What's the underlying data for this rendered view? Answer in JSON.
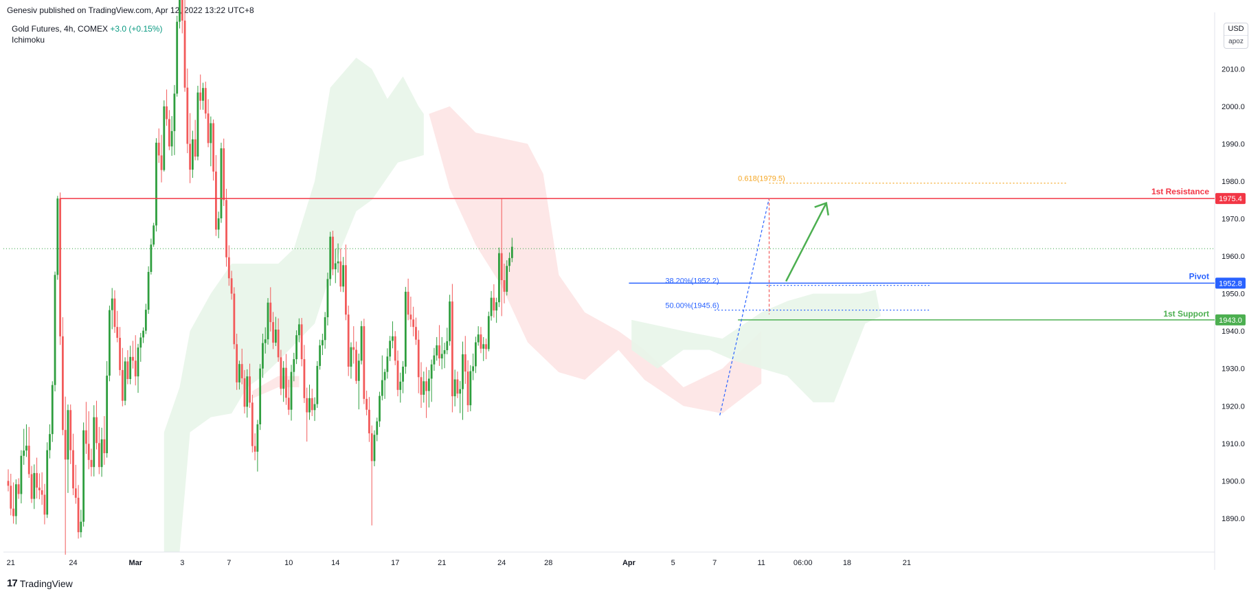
{
  "header": {
    "published": "Genesiv published on TradingView.com, Apr 12, 2022 13:22 UTC+8"
  },
  "legend": {
    "symbol": "Gold Futures, 4h, COMEX",
    "change": "+3.0 (+0.15%)",
    "indicator": "Ichimoku"
  },
  "price_scale": {
    "currency": "USD",
    "badge": "apoz"
  },
  "footer": {
    "logo_mark": "17",
    "brand": "TradingView"
  },
  "colors": {
    "up": "#2e9e3e",
    "down": "#f25a5a",
    "resistance": "#f23645",
    "pivot": "#2962ff",
    "support": "#4caf50",
    "fib": "#f5a623",
    "cloud_bull": "#e8f5e9",
    "cloud_bear": "#fde4e4"
  },
  "chart_data": {
    "type": "candlestick",
    "title": "",
    "ylim": [
      1881,
      2024
    ],
    "y_ticks": [
      1890.0,
      1900.0,
      1910.0,
      1920.0,
      1930.0,
      1940.0,
      1950.0,
      1960.0,
      1970.0,
      1980.0,
      1990.0,
      2000.0,
      2010.0
    ],
    "y_tick_labels": [
      "1890.0",
      "1900.0",
      "1910.0",
      "1920.0",
      "1930.0",
      "1940.0",
      "1950.0",
      "1960.0",
      "1970.0",
      "1980.0",
      "1990.0",
      "2000.0",
      "2010.0"
    ],
    "x_ticks": [
      {
        "label": "21",
        "bar": 1,
        "bold": false
      },
      {
        "label": "24",
        "bar": 25,
        "bold": false
      },
      {
        "label": "Mar",
        "bar": 49,
        "bold": true
      },
      {
        "label": "3",
        "bar": 67,
        "bold": false
      },
      {
        "label": "7",
        "bar": 85,
        "bold": false
      },
      {
        "label": "10",
        "bar": 108,
        "bold": false
      },
      {
        "label": "14",
        "bar": 126,
        "bold": false
      },
      {
        "label": "17",
        "bar": 149,
        "bold": false
      },
      {
        "label": "21",
        "bar": 167,
        "bold": false
      },
      {
        "label": "24",
        "bar": 190,
        "bold": false
      },
      {
        "label": "28",
        "bar": 208,
        "bold": false
      },
      {
        "label": "Apr",
        "bar": 239,
        "bold": true
      },
      {
        "label": "5",
        "bar": 256,
        "bold": false
      },
      {
        "label": "7",
        "bar": 272,
        "bold": false
      },
      {
        "label": "11",
        "bar": 290,
        "bold": false
      },
      {
        "label": "06:00",
        "bar": 306,
        "bold": false
      },
      {
        "label": "18",
        "bar": 323,
        "bold": false
      },
      {
        "label": "21",
        "bar": 346,
        "bold": false
      }
    ],
    "levels": [
      {
        "name": "1st Resistance",
        "value": 1975.4,
        "label": "1975.4"
      },
      {
        "name": "Pivot",
        "value": 1952.8,
        "label": "1952.8"
      },
      {
        "name": "1st Support",
        "value": 1943.0,
        "label": "1943.0"
      }
    ],
    "fib_levels": [
      {
        "label": "0.618(1979.5)",
        "value": 1979.5
      },
      {
        "label": "38.20%(1952.2)",
        "value": 1952.2
      },
      {
        "label": "50.00%(1945.6)",
        "value": 1945.6
      }
    ],
    "last_price": 1962.0,
    "candles": [
      [
        1900.0,
        1903.1,
        1897.2,
        1898.7
      ],
      [
        1898.7,
        1901.9,
        1890.8,
        1892.6
      ],
      [
        1892.6,
        1899.6,
        1888.6,
        1890.6
      ],
      [
        1890.6,
        1900.4,
        1888.4,
        1899.1
      ],
      [
        1899.1,
        1900.7,
        1895.2,
        1896.5
      ],
      [
        1896.5,
        1908.2,
        1894.0,
        1906.7
      ],
      [
        1906.7,
        1913.9,
        1904.3,
        1908.1
      ],
      [
        1908.1,
        1915.1,
        1906.4,
        1909.4
      ],
      [
        1909.4,
        1914.4,
        1900.8,
        1901.8
      ],
      [
        1901.8,
        1904.0,
        1894.1,
        1895.2
      ],
      [
        1895.2,
        1904.4,
        1892.5,
        1902.1
      ],
      [
        1902.1,
        1906.2,
        1895.3,
        1898.2
      ],
      [
        1898.2,
        1902.0,
        1895.1,
        1897.5
      ],
      [
        1897.5,
        1902.3,
        1893.6,
        1896.3
      ],
      [
        1896.3,
        1899.2,
        1888.4,
        1891.0
      ],
      [
        1891.0,
        1910.3,
        1890.1,
        1908.2
      ],
      [
        1908.2,
        1915.1,
        1906.0,
        1912.5
      ],
      [
        1912.5,
        1926.6,
        1910.4,
        1925.6
      ],
      [
        1925.6,
        1955.9,
        1923.9,
        1955.0
      ],
      [
        1955.0,
        1976.1,
        1953.7,
        1975.4
      ],
      [
        1975.4,
        1977.0,
        1936.3,
        1938.6
      ],
      [
        1938.6,
        1943.7,
        1912.2,
        1913.6
      ],
      [
        1913.6,
        1922.5,
        1880.3,
        1905.7
      ],
      [
        1905.7,
        1920.4,
        1896.8,
        1918.9
      ],
      [
        1918.9,
        1920.4,
        1904.5,
        1908.2
      ],
      [
        1908.2,
        1912.6,
        1896.2,
        1898.0
      ],
      [
        1898.0,
        1904.3,
        1893.9,
        1895.5
      ],
      [
        1895.5,
        1898.9,
        1884.6,
        1886.3
      ],
      [
        1886.3,
        1892.3,
        1884.9,
        1889.1
      ],
      [
        1889.1,
        1915.6,
        1887.8,
        1913.5
      ],
      [
        1913.5,
        1921.1,
        1907.2,
        1909.9
      ],
      [
        1909.9,
        1918.6,
        1903.1,
        1905.6
      ],
      [
        1905.6,
        1908.6,
        1901.2,
        1903.7
      ],
      [
        1903.7,
        1920.2,
        1901.2,
        1917.0
      ],
      [
        1917.0,
        1921.4,
        1908.4,
        1910.1
      ],
      [
        1910.1,
        1914.4,
        1901.8,
        1903.7
      ],
      [
        1903.7,
        1914.2,
        1901.1,
        1911.1
      ],
      [
        1911.1,
        1917.3,
        1904.3,
        1907.4
      ],
      [
        1907.4,
        1932.0,
        1906.2,
        1928.1
      ],
      [
        1928.1,
        1946.8,
        1926.6,
        1945.6
      ],
      [
        1945.6,
        1951.5,
        1940.5,
        1948.7
      ],
      [
        1948.7,
        1950.9,
        1939.5,
        1941.1
      ],
      [
        1941.1,
        1945.4,
        1937.0,
        1938.2
      ],
      [
        1938.2,
        1941.1,
        1928.1,
        1929.6
      ],
      [
        1929.6,
        1935.5,
        1919.9,
        1921.4
      ],
      [
        1921.4,
        1933.0,
        1920.2,
        1931.9
      ],
      [
        1931.9,
        1934.9,
        1925.8,
        1927.2
      ],
      [
        1927.2,
        1936.1,
        1925.8,
        1933.1
      ],
      [
        1933.1,
        1937.4,
        1930.0,
        1932.1
      ],
      [
        1932.1,
        1938.9,
        1925.5,
        1927.9
      ],
      [
        1927.9,
        1936.6,
        1923.5,
        1935.6
      ],
      [
        1935.6,
        1939.5,
        1931.8,
        1938.3
      ],
      [
        1938.3,
        1941.0,
        1936.8,
        1940.1
      ],
      [
        1940.1,
        1947.3,
        1939.2,
        1945.7
      ],
      [
        1945.7,
        1957.3,
        1944.6,
        1955.8
      ],
      [
        1955.8,
        1964.7,
        1955.1,
        1963.1
      ],
      [
        1963.1,
        1968.9,
        1962.5,
        1968.2
      ],
      [
        1968.2,
        1991.5,
        1966.6,
        1990.3
      ],
      [
        1990.3,
        1994.1,
        1984.9,
        1986.9
      ],
      [
        1986.9,
        1992.4,
        1979.7,
        1983.0
      ],
      [
        1983.0,
        2001.6,
        1982.6,
        2000.0
      ],
      [
        2000.0,
        2004.5,
        1994.8,
        1996.6
      ],
      [
        1996.6,
        1999.0,
        1988.3,
        1989.3
      ],
      [
        1989.3,
        1997.4,
        1986.8,
        1993.4
      ],
      [
        1993.4,
        2005.7,
        1987.0,
        2003.4
      ],
      [
        2003.4,
        2024.2,
        2002.6,
        2022.6
      ],
      [
        2022.6,
        2036.0,
        2020.8,
        2033.7
      ],
      [
        2033.7,
        2037.5,
        2019.5,
        2022.9
      ],
      [
        2022.9,
        2030.2,
        2003.9,
        2005.0
      ],
      [
        2005.0,
        2010.1,
        1987.5,
        1990.0
      ],
      [
        1990.0,
        1998.2,
        1979.5,
        1983.1
      ],
      [
        1983.1,
        1993.5,
        1980.9,
        1991.2
      ],
      [
        1991.2,
        1996.4,
        1985.6,
        1986.6
      ],
      [
        1986.6,
        2005.5,
        1985.6,
        2003.7
      ],
      [
        2003.7,
        2008.5,
        1999.1,
        2001.5
      ],
      [
        2001.5,
        2006.3,
        1999.1,
        2004.9
      ],
      [
        2004.9,
        2006.6,
        1996.7,
        1998.1
      ],
      [
        1998.1,
        2001.9,
        1989.1,
        1990.2
      ],
      [
        1990.2,
        1997.3,
        1984.0,
        1995.5
      ],
      [
        1995.5,
        1996.5,
        1980.2,
        1982.6
      ],
      [
        1982.6,
        1987.0,
        1965.4,
        1967.1
      ],
      [
        1967.1,
        1971.9,
        1964.8,
        1970.1
      ],
      [
        1970.1,
        1990.3,
        1968.9,
        1988.8
      ],
      [
        1988.8,
        1991.4,
        1973.4,
        1975.0
      ],
      [
        1975.0,
        1978.0,
        1957.2,
        1959.7
      ],
      [
        1959.7,
        1962.9,
        1952.1,
        1954.1
      ],
      [
        1954.1,
        1956.1,
        1948.4,
        1950.0
      ],
      [
        1950.0,
        1951.7,
        1935.2,
        1936.5
      ],
      [
        1936.5,
        1939.3,
        1924.3,
        1926.3
      ],
      [
        1926.3,
        1932.1,
        1924.4,
        1931.2
      ],
      [
        1931.2,
        1935.3,
        1925.8,
        1927.4
      ],
      [
        1927.4,
        1929.6,
        1918.0,
        1919.8
      ],
      [
        1919.8,
        1929.8,
        1916.9,
        1927.9
      ],
      [
        1927.9,
        1931.3,
        1919.5,
        1920.9
      ],
      [
        1920.9,
        1923.0,
        1907.6,
        1909.3
      ],
      [
        1909.3,
        1912.7,
        1905.5,
        1907.8
      ],
      [
        1907.8,
        1916.3,
        1902.5,
        1915.1
      ],
      [
        1915.1,
        1931.2,
        1913.6,
        1930.0
      ],
      [
        1930.0,
        1939.3,
        1927.5,
        1936.8
      ],
      [
        1936.8,
        1941.0,
        1934.0,
        1937.8
      ],
      [
        1937.8,
        1948.8,
        1936.4,
        1947.6
      ],
      [
        1947.6,
        1951.7,
        1939.9,
        1942.4
      ],
      [
        1942.4,
        1945.1,
        1935.2,
        1936.9
      ],
      [
        1936.9,
        1943.8,
        1936.0,
        1940.4
      ],
      [
        1940.4,
        1943.4,
        1931.8,
        1933.0
      ],
      [
        1933.0,
        1935.0,
        1922.9,
        1924.6
      ],
      [
        1924.6,
        1932.0,
        1921.1,
        1930.2
      ],
      [
        1930.2,
        1933.9,
        1920.3,
        1922.2
      ],
      [
        1922.2,
        1927.0,
        1917.6,
        1919.0
      ],
      [
        1919.0,
        1931.0,
        1916.1,
        1929.1
      ],
      [
        1929.1,
        1934.2,
        1926.6,
        1932.5
      ],
      [
        1932.5,
        1940.2,
        1931.2,
        1938.9
      ],
      [
        1938.9,
        1943.4,
        1937.0,
        1941.8
      ],
      [
        1941.8,
        1943.5,
        1930.6,
        1932.5
      ],
      [
        1932.5,
        1936.3,
        1920.8,
        1922.1
      ],
      [
        1922.1,
        1924.9,
        1910.5,
        1918.3
      ],
      [
        1918.3,
        1925.7,
        1916.3,
        1922.1
      ],
      [
        1922.1,
        1924.6,
        1917.3,
        1918.9
      ],
      [
        1918.9,
        1922.3,
        1916.0,
        1920.5
      ],
      [
        1920.5,
        1932.0,
        1919.5,
        1930.7
      ],
      [
        1930.7,
        1937.7,
        1929.7,
        1936.2
      ],
      [
        1936.2,
        1939.3,
        1933.6,
        1937.6
      ],
      [
        1937.6,
        1945.1,
        1935.3,
        1943.7
      ],
      [
        1943.7,
        1955.6,
        1941.5,
        1953.9
      ],
      [
        1953.9,
        1966.5,
        1952.1,
        1965.2
      ],
      [
        1965.2,
        1966.8,
        1954.9,
        1956.5
      ],
      [
        1956.5,
        1962.0,
        1952.8,
        1958.1
      ],
      [
        1958.1,
        1963.4,
        1955.6,
        1958.6
      ],
      [
        1958.6,
        1962.1,
        1950.5,
        1951.9
      ],
      [
        1951.9,
        1959.8,
        1950.4,
        1957.6
      ],
      [
        1957.6,
        1963.1,
        1942.9,
        1944.4
      ],
      [
        1944.4,
        1946.8,
        1928.0,
        1930.5
      ],
      [
        1930.5,
        1937.0,
        1927.3,
        1935.7
      ],
      [
        1935.7,
        1941.3,
        1931.3,
        1935.0
      ],
      [
        1935.0,
        1937.2,
        1925.9,
        1926.7
      ],
      [
        1926.7,
        1934.0,
        1919.1,
        1932.1
      ],
      [
        1932.1,
        1942.7,
        1931.1,
        1941.3
      ],
      [
        1941.3,
        1943.3,
        1920.5,
        1921.9
      ],
      [
        1921.9,
        1924.1,
        1917.5,
        1919.0
      ],
      [
        1919.0,
        1922.4,
        1910.4,
        1912.7
      ],
      [
        1912.7,
        1914.8,
        1888.1,
        1905.3
      ],
      [
        1905.3,
        1913.5,
        1903.9,
        1912.3
      ],
      [
        1912.3,
        1916.9,
        1910.6,
        1915.9
      ],
      [
        1915.9,
        1923.8,
        1914.4,
        1922.7
      ],
      [
        1922.7,
        1933.5,
        1921.5,
        1926.9
      ],
      [
        1926.9,
        1929.9,
        1921.9,
        1929.1
      ],
      [
        1929.1,
        1935.4,
        1927.3,
        1933.2
      ],
      [
        1933.2,
        1938.7,
        1932.0,
        1937.4
      ],
      [
        1937.4,
        1942.6,
        1935.4,
        1938.6
      ],
      [
        1938.6,
        1940.0,
        1930.9,
        1932.1
      ],
      [
        1932.1,
        1934.8,
        1922.6,
        1924.3
      ],
      [
        1924.3,
        1928.9,
        1920.9,
        1926.5
      ],
      [
        1926.5,
        1932.0,
        1923.4,
        1930.5
      ],
      [
        1930.5,
        1951.8,
        1928.6,
        1950.5
      ],
      [
        1950.5,
        1954.0,
        1942.9,
        1944.4
      ],
      [
        1944.4,
        1949.2,
        1941.1,
        1943.1
      ],
      [
        1943.1,
        1946.5,
        1938.6,
        1941.1
      ],
      [
        1941.1,
        1943.6,
        1936.3,
        1937.7
      ],
      [
        1937.7,
        1940.2,
        1923.4,
        1927.7
      ],
      [
        1927.7,
        1931.7,
        1919.5,
        1923.0
      ],
      [
        1923.0,
        1929.2,
        1920.9,
        1926.6
      ],
      [
        1926.6,
        1930.4,
        1916.8,
        1924.0
      ],
      [
        1924.0,
        1929.6,
        1919.6,
        1927.3
      ],
      [
        1927.3,
        1932.4,
        1921.1,
        1931.1
      ],
      [
        1931.1,
        1935.5,
        1929.4,
        1933.5
      ],
      [
        1933.5,
        1938.4,
        1932.1,
        1936.2
      ],
      [
        1936.2,
        1941.6,
        1930.7,
        1932.7
      ],
      [
        1932.7,
        1938.4,
        1929.8,
        1933.9
      ],
      [
        1933.9,
        1936.9,
        1930.1,
        1934.9
      ],
      [
        1934.9,
        1940.9,
        1933.8,
        1937.3
      ],
      [
        1937.3,
        1949.7,
        1936.1,
        1947.9
      ],
      [
        1947.9,
        1952.6,
        1918.3,
        1922.6
      ],
      [
        1922.6,
        1929.7,
        1919.9,
        1927.1
      ],
      [
        1927.1,
        1929.2,
        1922.1,
        1923.3
      ],
      [
        1923.3,
        1926.7,
        1918.1,
        1924.5
      ],
      [
        1924.5,
        1937.2,
        1916.3,
        1933.8
      ],
      [
        1933.8,
        1938.7,
        1925.9,
        1929.2
      ],
      [
        1929.2,
        1932.2,
        1918.4,
        1920.2
      ],
      [
        1920.2,
        1930.9,
        1918.6,
        1929.3
      ],
      [
        1929.3,
        1934.0,
        1926.9,
        1930.6
      ],
      [
        1930.6,
        1938.5,
        1928.8,
        1937.0
      ],
      [
        1937.0,
        1941.3,
        1936.1,
        1939.1
      ],
      [
        1939.1,
        1941.1,
        1934.1,
        1935.3
      ],
      [
        1935.3,
        1938.4,
        1932.0,
        1936.5
      ],
      [
        1936.5,
        1938.0,
        1932.5,
        1935.2
      ],
      [
        1935.2,
        1945.2,
        1934.6,
        1944.0
      ],
      [
        1944.0,
        1950.7,
        1942.8,
        1948.9
      ],
      [
        1948.9,
        1952.5,
        1943.6,
        1945.5
      ],
      [
        1945.5,
        1948.9,
        1942.2,
        1947.7
      ],
      [
        1947.7,
        1962.3,
        1946.4,
        1960.8
      ],
      [
        1960.8,
        1975.4,
        1944.0,
        1953.6
      ],
      [
        1953.6,
        1958.0,
        1947.4,
        1950.5
      ],
      [
        1950.5,
        1958.9,
        1949.5,
        1957.4
      ],
      [
        1957.4,
        1961.0,
        1955.8,
        1959.5
      ],
      [
        1959.5,
        1964.9,
        1958.4,
        1962.5
      ]
    ]
  }
}
